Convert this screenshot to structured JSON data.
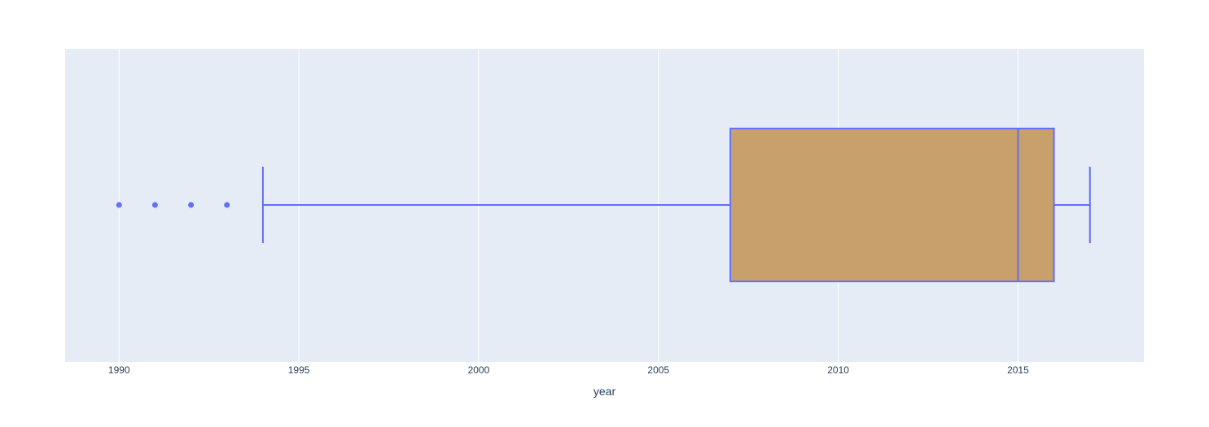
{
  "chart_data": {
    "type": "box",
    "orientation": "horizontal",
    "xlabel": "year",
    "xlim": [
      1988.5,
      2018.5
    ],
    "x_ticks": [
      1990,
      1995,
      2000,
      2005,
      2010,
      2015
    ],
    "x_tick_labels": [
      "1990",
      "1995",
      "2000",
      "2005",
      "2010",
      "2015"
    ],
    "grid": true,
    "box": {
      "lower_fence": 1994,
      "q1": 2007,
      "median": 2015,
      "q3": 2016,
      "upper_fence": 2017,
      "outliers": [
        1990,
        1991,
        1992,
        1993
      ]
    },
    "colors": {
      "plot_background": "#E5ECF6",
      "grid": "#FFFFFF",
      "box_fill": "#C8A06B",
      "box_line": "#636EFA",
      "outlier": "#636EFA",
      "text": "#2a3f5f"
    }
  }
}
